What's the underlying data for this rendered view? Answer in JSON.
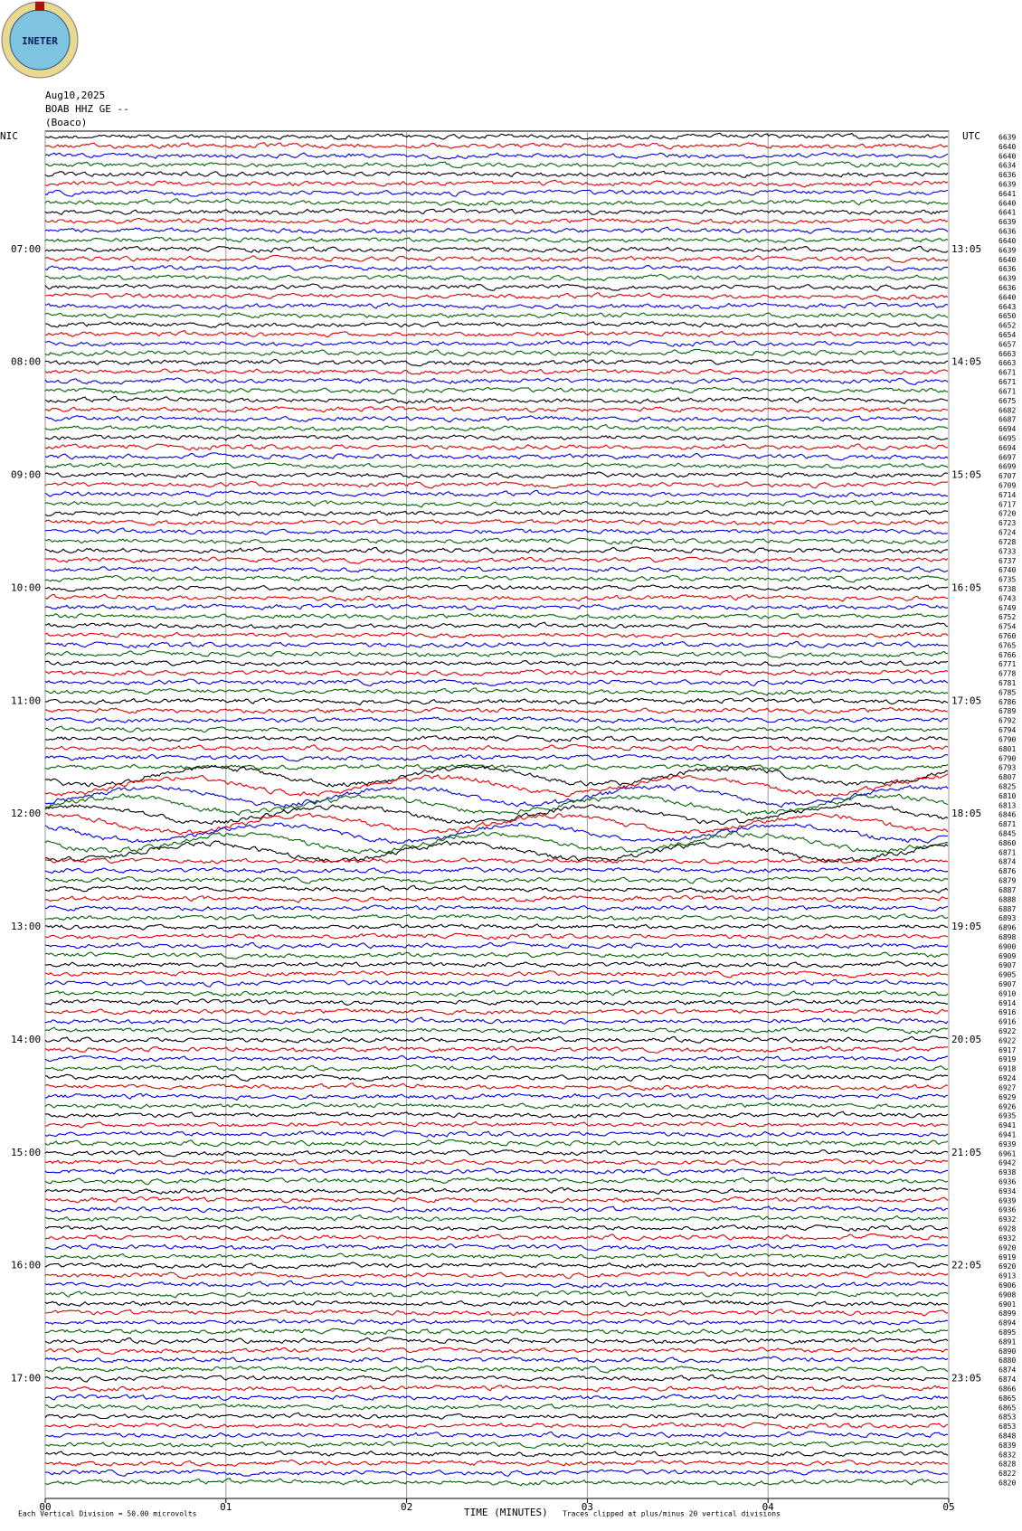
{
  "logo": "INETER",
  "header": {
    "date": "Aug10,2025",
    "station": "BOAB HHZ GE --",
    "place": "(Boaco)"
  },
  "chart_data": {
    "type": "helicorder",
    "left_axis_label": "NIC",
    "right_axis_label": "UTC",
    "local_hours": [
      "07:00",
      "08:00",
      "09:00",
      "10:00",
      "11:00",
      "12:00",
      "13:00",
      "14:00",
      "15:00",
      "16:00",
      "17:00"
    ],
    "utc_hours": [
      "13:05",
      "14:05",
      "15:05",
      "16:05",
      "17:05",
      "18:05",
      "19:05",
      "20:05",
      "21:05",
      "22:05",
      "23:05"
    ],
    "colors": [
      "#000000",
      "#e00000",
      "#0000e0",
      "#006400"
    ],
    "xlim": [
      0,
      5
    ],
    "xticks": [
      {
        "value": 0,
        "label": "00"
      },
      {
        "value": 1,
        "label": "01"
      },
      {
        "value": 2,
        "label": "02"
      },
      {
        "value": 3,
        "label": "03"
      },
      {
        "value": 4,
        "label": "04"
      },
      {
        "value": 5,
        "label": "05"
      }
    ],
    "x_label": "TIME (MINUTES)",
    "scale_note": "Each Vertical Division =    50.00 microvolts",
    "clip_note": "Traces clipped at plus/minus 20 vertical divisions",
    "trace_means": [
      6639,
      6640,
      6640,
      6634,
      6636,
      6639,
      6641,
      6640,
      6641,
      6639,
      6636,
      6640,
      6639,
      6640,
      6636,
      6639,
      6636,
      6640,
      6643,
      6650,
      6652,
      6654,
      6657,
      6663,
      6663,
      6671,
      6671,
      6671,
      6675,
      6682,
      6687,
      6694,
      6695,
      6694,
      6697,
      6699,
      6707,
      6709,
      6714,
      6717,
      6720,
      6723,
      6724,
      6728,
      6733,
      6737,
      6740,
      6735,
      6738,
      6743,
      6749,
      6752,
      6754,
      6760,
      6765,
      6766,
      6771,
      6778,
      6781,
      6785,
      6786,
      6789,
      6792,
      6794,
      6790,
      6801,
      6790,
      6793,
      6807,
      6825,
      6810,
      6813,
      6846,
      6871,
      6845,
      6860,
      6871,
      6874,
      6876,
      6879,
      6887,
      6888,
      6887,
      6893,
      6896,
      6898,
      6900,
      6909,
      6907,
      6905,
      6907,
      6910,
      6914,
      6916,
      6916,
      6922,
      6922,
      6917,
      6919,
      6918,
      6924,
      6927,
      6929,
      6926,
      6935,
      6941,
      6941,
      6939,
      6961,
      6942,
      6938,
      6936,
      6934,
      6939,
      6936,
      6932,
      6928,
      6932,
      6920,
      6919,
      6920,
      6913,
      6906,
      6908,
      6901,
      6899,
      6894,
      6895,
      6891,
      6890,
      6880,
      6874,
      6874,
      6866,
      6865,
      6865,
      6853,
      6853,
      6848,
      6839,
      6832,
      6828,
      6822,
      6820
    ]
  }
}
